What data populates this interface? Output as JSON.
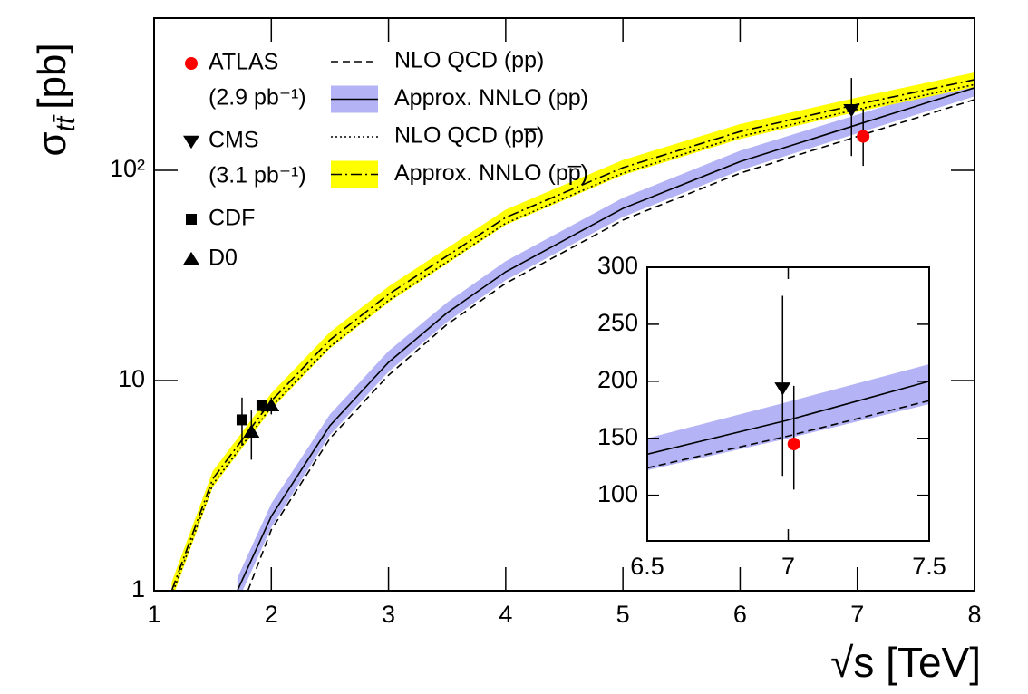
{
  "chart_data": [
    {
      "type": "line",
      "log_y": true,
      "y_label": "σ",
      "y_label_sub": "tt̄",
      "y_label_unit": "[pb]",
      "x_label": "√s [TeV]",
      "xlim": [
        1,
        8
      ],
      "xticks": [
        1,
        2,
        3,
        4,
        5,
        6,
        7,
        8
      ],
      "ylim": [
        1,
        530
      ],
      "yticks": [
        1,
        10,
        {
          "value": 100,
          "label": "10²"
        }
      ],
      "series": [
        {
          "name": "NLO QCD (pp)",
          "style": "dash",
          "color": "#000000",
          "x": [
            1.8,
            2,
            2.5,
            3,
            3.5,
            4,
            5,
            6,
            7,
            8
          ],
          "values": [
            1,
            1.95,
            5.3,
            10.6,
            18.5,
            29,
            58,
            97,
            145,
            217
          ]
        },
        {
          "name": "Approx. NNLO (pp)",
          "style": "solid",
          "color": "#000000",
          "band_color": "#b3b3f5",
          "x": [
            1.71,
            2,
            2.5,
            3,
            3.5,
            4,
            5,
            6,
            7,
            8
          ],
          "values": [
            1,
            2.26,
            6.1,
            12.2,
            21,
            32.9,
            65.9,
            110,
            165,
            247
          ],
          "band_lower": [
            0.88,
            2.0,
            5.5,
            11,
            19,
            30,
            60,
            100,
            150,
            225
          ],
          "band_upper": [
            1.15,
            2.6,
            6.9,
            13.8,
            23.5,
            37,
            74,
            124,
            184,
            275
          ]
        },
        {
          "name": "NLO QCD (pp̅)",
          "style": "dot",
          "color": "#000000",
          "x": [
            1.15,
            1.5,
            2,
            2.5,
            3,
            4,
            5,
            6,
            7,
            8
          ],
          "values": [
            0.95,
            3.2,
            7.5,
            14.5,
            24,
            56,
            97,
            145,
            195,
            256
          ]
        },
        {
          "name": "Approx. NNLO (pp̅)",
          "style": "dashdot",
          "color": "#000000",
          "band_color": "#ffff00",
          "x": [
            1.15,
            1.5,
            2,
            2.5,
            3,
            4,
            5,
            6,
            7,
            8
          ],
          "values": [
            1,
            3.4,
            8.0,
            15.6,
            25.7,
            59.7,
            103,
            153,
            206,
            270
          ],
          "band_lower": [
            0.9,
            3.1,
            7.3,
            14.2,
            23.5,
            55,
            95,
            141,
            190,
            249
          ],
          "band_upper": [
            1.1,
            3.7,
            8.7,
            17,
            28,
            65,
            112,
            166,
            222,
            292
          ]
        }
      ],
      "points": [
        {
          "name": "ATLAS",
          "lumi": "(2.9 pb⁻¹)",
          "marker": "circle",
          "color": "#ff0000",
          "x": [
            7.05
          ],
          "values": [
            145
          ],
          "err_low": [
            40
          ],
          "err_high": [
            51
          ]
        },
        {
          "name": "CMS",
          "lumi": "(3.1 pb⁻¹)",
          "marker": "triangle-down",
          "color": "#000000",
          "x": [
            6.95
          ],
          "values": [
            194
          ],
          "err_low": [
            77
          ],
          "err_high": [
            81
          ]
        },
        {
          "name": "CDF",
          "marker": "square",
          "color": "#000000",
          "x": [
            1.75,
            1.92
          ],
          "values": [
            6.5,
            7.6
          ],
          "err_low": [
            1.6,
            0.5
          ],
          "err_high": [
            1.8,
            0.5
          ]
        },
        {
          "name": "D0",
          "marker": "triangle-up",
          "color": "#000000",
          "x": [
            1.83,
            2.0
          ],
          "values": [
            5.7,
            7.6
          ],
          "err_low": [
            1.5,
            0.7
          ],
          "err_high": [
            1.5,
            0.7
          ]
        }
      ]
    },
    {
      "type": "line",
      "log_y": false,
      "xlim": [
        6.5,
        7.5
      ],
      "xticks": [
        6.5,
        7,
        7.5
      ],
      "ylim": [
        60,
        300
      ],
      "yticks": [
        100,
        150,
        200,
        250,
        300
      ],
      "series": [
        {
          "style": "dash",
          "color": "#000000",
          "x": [
            6.5,
            7,
            7.5
          ],
          "values": [
            124,
            152,
            183
          ]
        },
        {
          "style": "solid",
          "color": "#000000",
          "band_color": "#b3b3f5",
          "x": [
            6.5,
            7,
            7.5
          ],
          "values": [
            136,
            166,
            200
          ],
          "band_lower": [
            122,
            150,
            180
          ],
          "band_upper": [
            150,
            182,
            215
          ]
        }
      ],
      "points": [
        {
          "marker": "circle",
          "color": "#ff0000",
          "x": [
            7.02
          ],
          "values": [
            145
          ],
          "err_low": [
            40
          ],
          "err_high": [
            51
          ]
        },
        {
          "marker": "triangle-down",
          "color": "#000000",
          "x": [
            6.98
          ],
          "values": [
            194
          ],
          "err_low": [
            77
          ],
          "err_high": [
            81
          ]
        }
      ]
    }
  ]
}
